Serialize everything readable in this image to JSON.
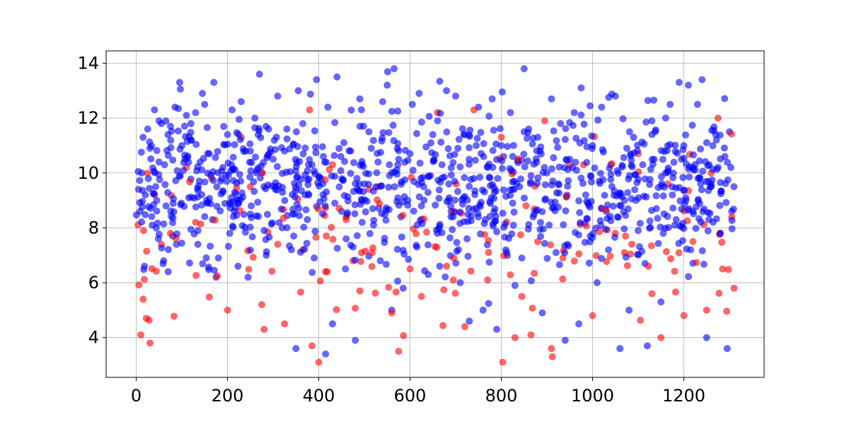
{
  "chart_data": {
    "type": "scatter",
    "title": "",
    "xlabel": "",
    "ylabel": "",
    "xlim": [
      -66,
      1376
    ],
    "ylim": [
      2.55,
      14.45
    ],
    "grid": true,
    "x_ticks": [
      0,
      200,
      400,
      600,
      800,
      1000,
      1200
    ],
    "x_tick_labels": [
      "0",
      "200",
      "400",
      "600",
      "800",
      "1000",
      "1200"
    ],
    "y_ticks": [
      4,
      6,
      8,
      10,
      12,
      14
    ],
    "y_tick_labels": [
      "4",
      "6",
      "8",
      "10",
      "12",
      "14"
    ],
    "x_range": [
      0,
      1310
    ],
    "series": [
      {
        "color": "#0000ff",
        "alpha": 0.6,
        "points": [
          [
            5,
            9.4
          ],
          [
            8,
            8.6
          ],
          [
            12,
            10.0
          ],
          [
            15,
            11.3
          ],
          [
            20,
            9.2
          ],
          [
            25,
            11.6
          ],
          [
            30,
            10.9
          ],
          [
            40,
            12.3
          ],
          [
            45,
            9.0
          ],
          [
            50,
            11.9
          ],
          [
            55,
            11.8
          ],
          [
            60,
            6.8
          ],
          [
            65,
            8.8
          ],
          [
            70,
            6.4
          ],
          [
            75,
            11.7
          ],
          [
            80,
            7.7
          ],
          [
            85,
            12.4
          ],
          [
            95,
            13.3
          ],
          [
            100,
            11.0
          ],
          [
            110,
            12.1
          ],
          [
            120,
            11.2
          ],
          [
            130,
            12.2
          ],
          [
            140,
            10.4
          ],
          [
            145,
            12.9
          ],
          [
            150,
            12.5
          ],
          [
            160,
            10.7
          ],
          [
            170,
            13.3
          ],
          [
            175,
            6.2
          ],
          [
            180,
            6.9
          ],
          [
            190,
            10.2
          ],
          [
            200,
            11.4
          ],
          [
            205,
            7.8
          ],
          [
            210,
            12.3
          ],
          [
            220,
            9.0
          ],
          [
            230,
            12.6
          ],
          [
            240,
            10.8
          ],
          [
            250,
            8.5
          ],
          [
            260,
            12.0
          ],
          [
            270,
            13.6
          ],
          [
            280,
            9.5
          ],
          [
            290,
            11.6
          ],
          [
            300,
            10.5
          ],
          [
            310,
            12.8
          ],
          [
            320,
            8.0
          ],
          [
            330,
            11.6
          ],
          [
            340,
            7.2
          ],
          [
            350,
            3.6
          ],
          [
            355,
            13.0
          ],
          [
            365,
            11.8
          ],
          [
            375,
            8.3
          ],
          [
            385,
            10.3
          ],
          [
            395,
            13.4
          ],
          [
            405,
            9.8
          ],
          [
            415,
            3.4
          ],
          [
            420,
            12.4
          ],
          [
            430,
            4.5
          ],
          [
            440,
            13.5
          ],
          [
            450,
            8.6
          ],
          [
            460,
            7.6
          ],
          [
            470,
            10.8
          ],
          [
            480,
            3.9
          ],
          [
            490,
            12.7
          ],
          [
            500,
            9.6
          ],
          [
            510,
            11.5
          ],
          [
            520,
            8.1
          ],
          [
            530,
            10.4
          ],
          [
            540,
            12.6
          ],
          [
            550,
            13.2
          ],
          [
            560,
            5.0
          ],
          [
            565,
            13.8
          ],
          [
            575,
            10.5
          ],
          [
            585,
            5.8
          ],
          [
            595,
            9.0
          ],
          [
            605,
            12.5
          ],
          [
            615,
            7.3
          ],
          [
            620,
            12.9
          ],
          [
            630,
            9.5
          ],
          [
            640,
            6.3
          ],
          [
            650,
            11.4
          ],
          [
            660,
            7.8
          ],
          [
            670,
            10.3
          ],
          [
            680,
            13.0
          ],
          [
            690,
            8.6
          ],
          [
            700,
            12.8
          ],
          [
            710,
            6.0
          ],
          [
            720,
            11.4
          ],
          [
            730,
            4.6
          ],
          [
            740,
            9.8
          ],
          [
            750,
            12.4
          ],
          [
            760,
            5.0
          ],
          [
            770,
            10.2
          ],
          [
            780,
            12.7
          ],
          [
            790,
            4.3
          ],
          [
            800,
            11.0
          ],
          [
            810,
            7.2
          ],
          [
            820,
            12.2
          ],
          [
            830,
            5.9
          ],
          [
            840,
            9.5
          ],
          [
            850,
            13.8
          ],
          [
            860,
            11.6
          ],
          [
            870,
            8.4
          ],
          [
            880,
            11.3
          ],
          [
            890,
            4.9
          ],
          [
            900,
            10.0
          ],
          [
            910,
            12.7
          ],
          [
            920,
            7.1
          ],
          [
            930,
            11.8
          ],
          [
            940,
            3.9
          ],
          [
            950,
            10.5
          ],
          [
            960,
            12.2
          ],
          [
            970,
            4.5
          ],
          [
            975,
            13.1
          ],
          [
            985,
            9.2
          ],
          [
            995,
            7.7
          ],
          [
            1000,
            11.0
          ],
          [
            1010,
            6.0
          ],
          [
            1020,
            12.4
          ],
          [
            1030,
            8.6
          ],
          [
            1040,
            10.3
          ],
          [
            1050,
            12.8
          ],
          [
            1060,
            3.6
          ],
          [
            1070,
            9.0
          ],
          [
            1080,
            5.0
          ],
          [
            1090,
            11.3
          ],
          [
            1100,
            7.9
          ],
          [
            1110,
            10.3
          ],
          [
            1120,
            3.7
          ],
          [
            1130,
            11.9
          ],
          [
            1140,
            8.7
          ],
          [
            1150,
            5.3
          ],
          [
            1160,
            10.0
          ],
          [
            1170,
            12.5
          ],
          [
            1180,
            8.1
          ],
          [
            1190,
            13.3
          ],
          [
            1200,
            11.0
          ],
          [
            1210,
            13.2
          ],
          [
            1220,
            8.6
          ],
          [
            1230,
            12.5
          ],
          [
            1240,
            13.4
          ],
          [
            1250,
            4.0
          ],
          [
            1260,
            9.5
          ],
          [
            1270,
            11.4
          ],
          [
            1280,
            7.8
          ],
          [
            1290,
            10.6
          ],
          [
            1295,
            3.6
          ],
          [
            1300,
            11.5
          ],
          [
            1305,
            8.6
          ],
          [
            1310,
            9.5
          ],
          [
            18,
            6.6
          ],
          [
            35,
            8.1
          ],
          [
            62,
            10.3
          ],
          [
            88,
            7.4
          ],
          [
            115,
            9.1
          ],
          [
            135,
            7.9
          ],
          [
            155,
            8.9
          ],
          [
            185,
            9.7
          ],
          [
            215,
            8.6
          ],
          [
            245,
            6.2
          ],
          [
            265,
            10.1
          ],
          [
            285,
            7.0
          ],
          [
            305,
            9.4
          ],
          [
            325,
            10.8
          ],
          [
            345,
            7.7
          ],
          [
            370,
            9.2
          ],
          [
            390,
            6.9
          ],
          [
            410,
            10.6
          ],
          [
            435,
            8.9
          ],
          [
            455,
            11.1
          ],
          [
            475,
            7.3
          ],
          [
            495,
            8.2
          ],
          [
            515,
            10.9
          ],
          [
            535,
            6.8
          ],
          [
            555,
            9.9
          ],
          [
            580,
            8.4
          ],
          [
            600,
            10.7
          ],
          [
            625,
            8.8
          ],
          [
            645,
            9.9
          ],
          [
            665,
            6.6
          ],
          [
            685,
            9.6
          ],
          [
            705,
            10.9
          ],
          [
            725,
            7.6
          ],
          [
            745,
            11.0
          ],
          [
            765,
            8.3
          ],
          [
            785,
            9.3
          ],
          [
            805,
            10.6
          ],
          [
            825,
            8.9
          ],
          [
            845,
            6.9
          ],
          [
            865,
            9.9
          ],
          [
            885,
            10.8
          ],
          [
            905,
            8.1
          ],
          [
            925,
            9.6
          ],
          [
            945,
            7.4
          ],
          [
            965,
            10.1
          ],
          [
            990,
            8.9
          ],
          [
            1015,
            9.7
          ],
          [
            1035,
            7.2
          ],
          [
            1055,
            8.4
          ],
          [
            1075,
            10.9
          ],
          [
            1095,
            9.0
          ],
          [
            1115,
            6.7
          ],
          [
            1135,
            10.5
          ],
          [
            1155,
            7.8
          ],
          [
            1175,
            9.2
          ],
          [
            1195,
            10.5
          ],
          [
            1215,
            7.2
          ],
          [
            1235,
            9.8
          ],
          [
            1255,
            8.3
          ],
          [
            1275,
            10.2
          ]
        ]
      },
      {
        "color": "#ff0000",
        "alpha": 0.6,
        "points": [
          [
            10,
            4.1
          ],
          [
            15,
            5.4
          ],
          [
            22,
            4.7
          ],
          [
            30,
            3.8
          ],
          [
            40,
            9.2
          ],
          [
            55,
            7.4
          ],
          [
            75,
            7.8
          ],
          [
            110,
            10.2
          ],
          [
            130,
            8.2
          ],
          [
            165,
            9.8
          ],
          [
            200,
            5.0
          ],
          [
            230,
            11.3
          ],
          [
            250,
            9.5
          ],
          [
            275,
            5.2
          ],
          [
            280,
            4.3
          ],
          [
            310,
            7.4
          ],
          [
            325,
            4.5
          ],
          [
            365,
            7.2
          ],
          [
            380,
            12.3
          ],
          [
            385,
            3.7
          ],
          [
            400,
            3.1
          ],
          [
            415,
            6.4
          ],
          [
            430,
            10.3
          ],
          [
            460,
            8.4
          ],
          [
            475,
            6.8
          ],
          [
            490,
            5.7
          ],
          [
            510,
            9.4
          ],
          [
            530,
            9.5
          ],
          [
            560,
            4.9
          ],
          [
            575,
            3.5
          ],
          [
            600,
            6.5
          ],
          [
            625,
            5.5
          ],
          [
            660,
            12.2
          ],
          [
            680,
            6.6
          ],
          [
            695,
            8.6
          ],
          [
            720,
            4.4
          ],
          [
            740,
            12.3
          ],
          [
            770,
            6.1
          ],
          [
            800,
            11.3
          ],
          [
            830,
            4.0
          ],
          [
            845,
            5.5
          ],
          [
            865,
            4.1
          ],
          [
            880,
            7.5
          ],
          [
            895,
            11.9
          ],
          [
            910,
            3.6
          ],
          [
            912,
            3.3
          ],
          [
            935,
            6.9
          ],
          [
            950,
            10.3
          ],
          [
            980,
            10.3
          ],
          [
            1000,
            4.8
          ],
          [
            1020,
            8.7
          ],
          [
            1050,
            7.8
          ],
          [
            1070,
            7.1
          ],
          [
            1100,
            10.7
          ],
          [
            1130,
            5.6
          ],
          [
            1150,
            4.0
          ],
          [
            1165,
            9.6
          ],
          [
            1200,
            4.8
          ],
          [
            1220,
            7.5
          ],
          [
            1250,
            5.0
          ],
          [
            1260,
            10.0
          ],
          [
            1275,
            12.0
          ],
          [
            1285,
            6.5
          ],
          [
            1305,
            8.4
          ],
          [
            1310,
            5.8
          ]
        ]
      }
    ]
  }
}
